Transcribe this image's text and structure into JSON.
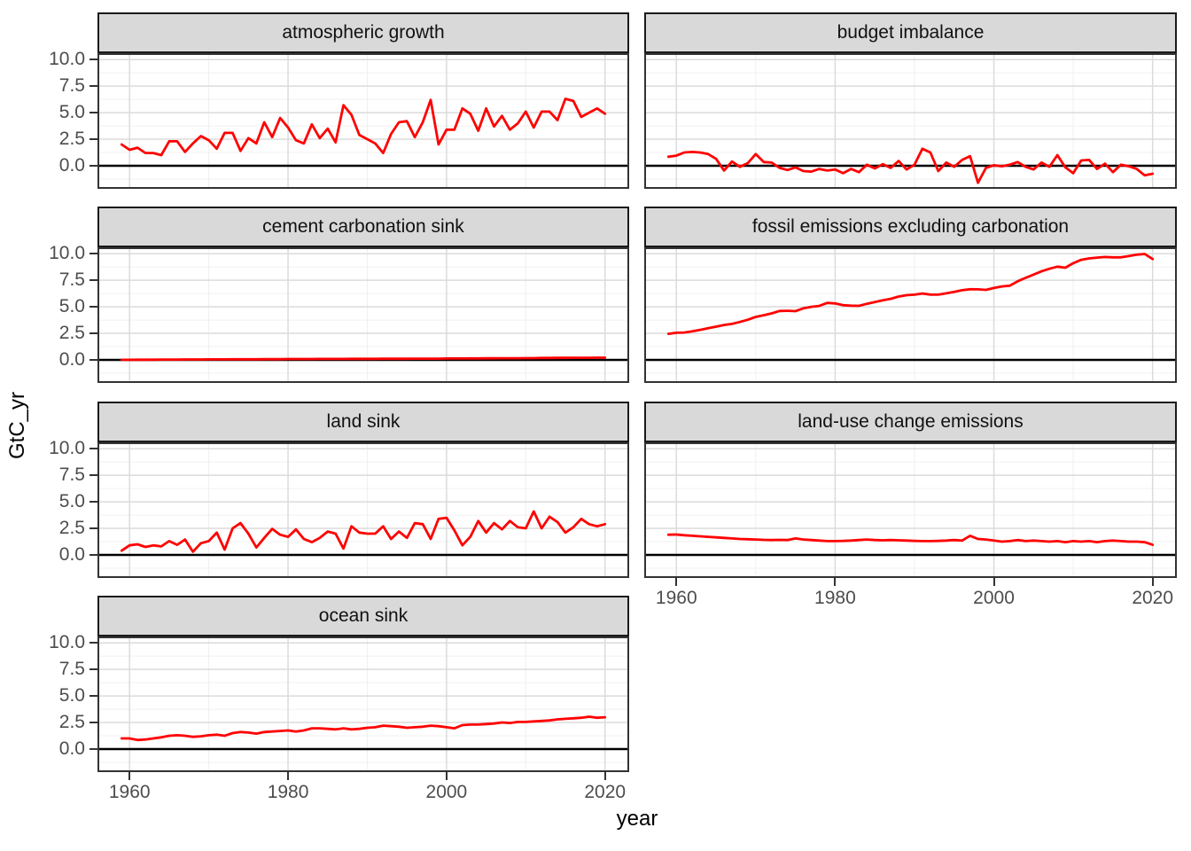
{
  "chart_data": {
    "type": "line",
    "title": "",
    "xlabel": "year",
    "ylabel": "GtC_yr",
    "legend": "none",
    "grid": true,
    "x_range": [
      1955.95,
      2023.05
    ],
    "y_range": [
      -2.17,
      10.6
    ],
    "x_ticks": [
      1960,
      1980,
      2000,
      2020
    ],
    "x_tick_labels": [
      "1960",
      "1980",
      "2000",
      "2020"
    ],
    "x_minor_ticks": [
      1970,
      1990,
      2010
    ],
    "y_ticks": [
      0,
      2.5,
      5,
      7.5,
      10
    ],
    "y_tick_labels": [
      "0.0",
      "2.5",
      "5.0",
      "7.5",
      "10.0"
    ],
    "y_minor_ticks": [
      -1.25,
      1.25,
      3.75,
      6.25,
      8.75
    ],
    "reference_line_y": 0,
    "style": {
      "line": "#FF0000",
      "hline": "#000000",
      "panel_border": "#333333",
      "grid_major": "#DBDBDB",
      "grid_minor": "#F0F0F0",
      "strip_fill": "#D9D9D9",
      "strip_border": "#1A1A1A",
      "tick_label": "#4D4D4D"
    },
    "years": [
      1959,
      1960,
      1961,
      1962,
      1963,
      1964,
      1965,
      1966,
      1967,
      1968,
      1969,
      1970,
      1971,
      1972,
      1973,
      1974,
      1975,
      1976,
      1977,
      1978,
      1979,
      1980,
      1981,
      1982,
      1983,
      1984,
      1985,
      1986,
      1987,
      1988,
      1989,
      1990,
      1991,
      1992,
      1993,
      1994,
      1995,
      1996,
      1997,
      1998,
      1999,
      2000,
      2001,
      2002,
      2003,
      2004,
      2005,
      2006,
      2007,
      2008,
      2009,
      2010,
      2011,
      2012,
      2013,
      2014,
      2015,
      2016,
      2017,
      2018,
      2019,
      2020
    ],
    "facets": [
      {
        "label": "atmospheric growth",
        "values": [
          2.0,
          1.5,
          1.7,
          1.2,
          1.2,
          1.0,
          2.3,
          2.3,
          1.3,
          2.1,
          2.8,
          2.4,
          1.6,
          3.1,
          3.1,
          1.4,
          2.6,
          2.1,
          4.1,
          2.7,
          4.5,
          3.6,
          2.4,
          2.1,
          3.9,
          2.6,
          3.5,
          2.2,
          5.7,
          4.8,
          2.9,
          2.5,
          2.1,
          1.2,
          3.0,
          4.1,
          4.2,
          2.7,
          4.1,
          6.2,
          2.0,
          3.4,
          3.4,
          5.4,
          4.9,
          3.3,
          5.4,
          3.7,
          4.7,
          3.4,
          4.0,
          5.1,
          3.6,
          5.1,
          5.1,
          4.3,
          6.3,
          6.1,
          4.6,
          5.0,
          5.4,
          4.9
        ]
      },
      {
        "label": "budget imbalance",
        "values": [
          0.85,
          0.95,
          1.25,
          1.3,
          1.25,
          1.1,
          0.65,
          -0.45,
          0.4,
          -0.1,
          0.25,
          1.1,
          0.35,
          0.3,
          -0.2,
          -0.4,
          -0.15,
          -0.5,
          -0.55,
          -0.3,
          -0.45,
          -0.35,
          -0.7,
          -0.3,
          -0.6,
          0.1,
          -0.25,
          0.15,
          -0.2,
          0.45,
          -0.35,
          0.1,
          1.6,
          1.25,
          -0.5,
          0.3,
          -0.1,
          0.55,
          0.9,
          -1.6,
          -0.2,
          0.05,
          -0.05,
          0.1,
          0.35,
          -0.1,
          -0.35,
          0.3,
          -0.1,
          1.0,
          -0.15,
          -0.7,
          0.5,
          0.55,
          -0.3,
          0.2,
          -0.6,
          0.1,
          -0.05,
          -0.3,
          -0.9,
          -0.75
        ]
      },
      {
        "label": "cement carbonation sink",
        "values": [
          0.01,
          0.01,
          0.02,
          0.02,
          0.02,
          0.03,
          0.03,
          0.03,
          0.04,
          0.04,
          0.04,
          0.05,
          0.05,
          0.05,
          0.06,
          0.06,
          0.06,
          0.06,
          0.07,
          0.07,
          0.07,
          0.08,
          0.08,
          0.08,
          0.08,
          0.09,
          0.09,
          0.09,
          0.09,
          0.1,
          0.1,
          0.1,
          0.1,
          0.11,
          0.11,
          0.11,
          0.11,
          0.12,
          0.12,
          0.12,
          0.12,
          0.13,
          0.13,
          0.13,
          0.14,
          0.14,
          0.15,
          0.15,
          0.16,
          0.16,
          0.16,
          0.17,
          0.17,
          0.18,
          0.18,
          0.19,
          0.19,
          0.2,
          0.2,
          0.2,
          0.21,
          0.21
        ]
      },
      {
        "label": "fossil emissions excluding carbonation",
        "values": [
          2.45,
          2.55,
          2.58,
          2.69,
          2.83,
          2.99,
          3.13,
          3.29,
          3.39,
          3.57,
          3.78,
          4.05,
          4.21,
          4.38,
          4.61,
          4.62,
          4.59,
          4.86,
          5.0,
          5.08,
          5.37,
          5.32,
          5.15,
          5.11,
          5.09,
          5.28,
          5.44,
          5.61,
          5.75,
          5.97,
          6.09,
          6.14,
          6.25,
          6.15,
          6.14,
          6.27,
          6.4,
          6.56,
          6.65,
          6.64,
          6.59,
          6.77,
          6.92,
          6.99,
          7.4,
          7.73,
          8.03,
          8.34,
          8.58,
          8.78,
          8.68,
          9.11,
          9.42,
          9.56,
          9.63,
          9.69,
          9.66,
          9.66,
          9.77,
          9.91,
          9.97,
          9.5
        ]
      },
      {
        "label": "land sink",
        "values": [
          0.4,
          0.9,
          1.0,
          0.75,
          0.9,
          0.8,
          1.3,
          0.95,
          1.45,
          0.3,
          1.1,
          1.3,
          2.1,
          0.5,
          2.5,
          3.0,
          2.0,
          0.7,
          1.6,
          2.45,
          1.9,
          1.7,
          2.4,
          1.5,
          1.2,
          1.6,
          2.2,
          2.0,
          0.6,
          2.7,
          2.1,
          2.0,
          2.0,
          2.7,
          1.5,
          2.2,
          1.6,
          3.0,
          2.9,
          1.5,
          3.4,
          3.5,
          2.3,
          0.9,
          1.7,
          3.2,
          2.1,
          3.0,
          2.4,
          3.2,
          2.6,
          2.5,
          4.1,
          2.5,
          3.6,
          3.1,
          2.1,
          2.6,
          3.4,
          2.9,
          2.7,
          2.9
        ]
      },
      {
        "label": "land-use change emissions",
        "values": [
          1.9,
          1.92,
          1.85,
          1.8,
          1.75,
          1.7,
          1.65,
          1.6,
          1.55,
          1.5,
          1.48,
          1.45,
          1.42,
          1.4,
          1.42,
          1.4,
          1.55,
          1.45,
          1.4,
          1.35,
          1.3,
          1.3,
          1.32,
          1.35,
          1.4,
          1.45,
          1.4,
          1.38,
          1.4,
          1.38,
          1.35,
          1.32,
          1.3,
          1.3,
          1.32,
          1.35,
          1.4,
          1.35,
          1.8,
          1.5,
          1.45,
          1.35,
          1.25,
          1.3,
          1.4,
          1.3,
          1.35,
          1.3,
          1.25,
          1.3,
          1.2,
          1.3,
          1.25,
          1.3,
          1.2,
          1.3,
          1.35,
          1.3,
          1.25,
          1.25,
          1.2,
          0.95
        ]
      },
      {
        "label": "ocean sink",
        "values": [
          1.0,
          1.0,
          0.85,
          0.9,
          1.0,
          1.1,
          1.25,
          1.3,
          1.25,
          1.15,
          1.2,
          1.3,
          1.35,
          1.25,
          1.5,
          1.6,
          1.55,
          1.45,
          1.6,
          1.65,
          1.7,
          1.75,
          1.65,
          1.75,
          1.95,
          1.95,
          1.9,
          1.85,
          1.95,
          1.85,
          1.9,
          2.0,
          2.05,
          2.2,
          2.15,
          2.1,
          2.0,
          2.05,
          2.1,
          2.2,
          2.15,
          2.05,
          1.95,
          2.25,
          2.3,
          2.3,
          2.35,
          2.4,
          2.5,
          2.45,
          2.55,
          2.55,
          2.6,
          2.65,
          2.7,
          2.8,
          2.85,
          2.9,
          2.95,
          3.05,
          2.95,
          3.0
        ]
      }
    ]
  }
}
